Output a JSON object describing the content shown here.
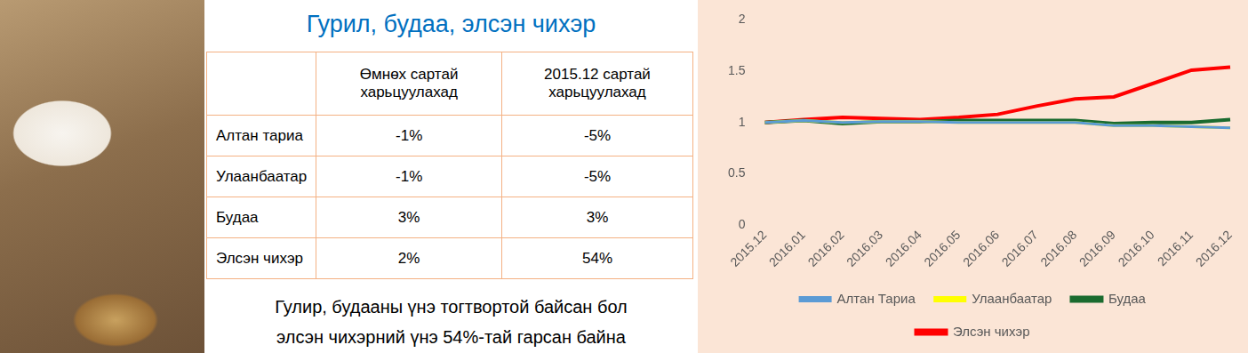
{
  "title": "Гурил, будаа, элсэн чихэр",
  "table": {
    "header": [
      "Өмнөх сартай харьцуулахад",
      "2015.12 сартай харьцуулахад"
    ],
    "rows": [
      [
        "Алтан тариа",
        "-1%",
        "-5%"
      ],
      [
        "Улаанбаатар",
        "-1%",
        "-5%"
      ],
      [
        "Будаа",
        "3%",
        "3%"
      ],
      [
        "Элсэн чихэр",
        "2%",
        "54%"
      ]
    ]
  },
  "caption": [
    "Гулир, будааны үнэ тогтвортой байсан бол",
    "элсэн чихэрний үнэ 54%-тай гарсан байна"
  ],
  "chart_data": {
    "type": "line",
    "categories": [
      "2015.12",
      "2016.01",
      "2016.02",
      "2016.03",
      "2016.04",
      "2016.05",
      "2016.06",
      "2016.07",
      "2016.08",
      "2016.09",
      "2016.10",
      "2016.11",
      "2016.12"
    ],
    "series": [
      {
        "name": "Алтан Тариа",
        "color": "#5b9bd5",
        "values": [
          1,
          1.02,
          1.0,
          1.01,
          1.01,
          1.0,
          1.0,
          1.0,
          1.0,
          0.97,
          0.97,
          0.96,
          0.95
        ]
      },
      {
        "name": "Улаанбаатар",
        "color": "#ffff00",
        "values": [
          1,
          1.02,
          1.0,
          1.01,
          1.01,
          1.0,
          1.0,
          1.0,
          1.0,
          0.97,
          0.97,
          0.96,
          0.95
        ]
      },
      {
        "name": "Будаа",
        "color": "#1a6b2f",
        "values": [
          1,
          1.02,
          0.99,
          1.01,
          1.01,
          1.02,
          1.02,
          1.02,
          1.02,
          0.99,
          1.0,
          1.0,
          1.03
        ]
      },
      {
        "name": "Элсэн чихэр",
        "color": "#ff0000",
        "values": [
          1,
          1.03,
          1.05,
          1.04,
          1.03,
          1.05,
          1.08,
          1.16,
          1.23,
          1.25,
          1.38,
          1.51,
          1.54
        ]
      }
    ],
    "ylim": [
      0,
      2
    ],
    "yticks": [
      0,
      0.5,
      1,
      1.5,
      2
    ],
    "grid": false,
    "legend": "bottom"
  }
}
